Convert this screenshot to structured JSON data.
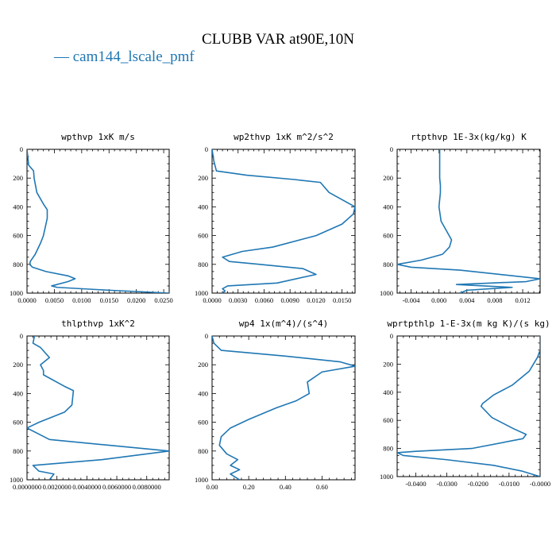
{
  "title": "CLUBB VAR at90E,10N",
  "legend": {
    "label": "cam144_lscale_pmf",
    "color": "#1f77b4"
  },
  "colors": {
    "line": "#1f77b4",
    "axis": "#000000",
    "text": "#000000"
  },
  "chart_data": [
    {
      "type": "line",
      "title": "wpthvp   1xK m/s",
      "xlim": [
        0,
        0.026
      ],
      "ylim": [
        1000,
        0
      ],
      "xticks": [
        0,
        0.005,
        0.01,
        0.015,
        0.02,
        0.025
      ],
      "xtick_labels": [
        "0.0000",
        "0.0050",
        "0.0100",
        "0.0150",
        "0.0200",
        "0.0250"
      ],
      "yticks": [
        0,
        200,
        400,
        600,
        800,
        1000
      ],
      "ytick_labels": [
        "0",
        "200",
        "400",
        "600",
        "800",
        "1000"
      ],
      "series": [
        {
          "name": "cam144_lscale_pmf",
          "x": [
            0.0,
            0.0003,
            0.0012,
            0.0013,
            0.0018,
            0.003,
            0.0037,
            0.0037,
            0.003,
            0.0025,
            0.0015,
            0.0006,
            0.0005,
            0.001,
            0.0035,
            0.0075,
            0.0088,
            0.0075,
            0.0045,
            0.0055,
            0.015,
            0.026
          ],
          "y": [
            0,
            110,
            150,
            200,
            300,
            380,
            420,
            480,
            600,
            650,
            730,
            780,
            800,
            820,
            850,
            880,
            900,
            920,
            950,
            960,
            980,
            1000
          ]
        }
      ]
    },
    {
      "type": "line",
      "title": "wp2thvp   1xK m^2/s^2",
      "xlim": [
        0,
        0.0165
      ],
      "ylim": [
        1000,
        0
      ],
      "xticks": [
        0,
        0.003,
        0.006,
        0.009,
        0.012,
        0.015
      ],
      "xtick_labels": [
        "0.0000",
        "0.0030",
        "0.0060",
        "0.0090",
        "0.0120",
        "0.0150"
      ],
      "yticks": [
        0,
        200,
        400,
        600,
        800,
        1000
      ],
      "ytick_labels": [
        "0",
        "200",
        "400",
        "600",
        "800",
        "1000"
      ],
      "series": [
        {
          "name": "cam144_lscale_pmf",
          "x": [
            0.0,
            0.0002,
            0.0005,
            0.004,
            0.0095,
            0.0125,
            0.0135,
            0.0165,
            0.0163,
            0.015,
            0.012,
            0.007,
            0.0035,
            0.0012,
            0.002,
            0.0055,
            0.0105,
            0.012,
            0.0075,
            0.0018,
            0.0012,
            0.0015,
            0.0012
          ],
          "y": [
            0,
            80,
            150,
            180,
            210,
            230,
            300,
            400,
            450,
            520,
            600,
            680,
            710,
            750,
            780,
            800,
            830,
            870,
            930,
            950,
            970,
            985,
            1000
          ]
        }
      ]
    },
    {
      "type": "line",
      "title": "rtpthvp   1E-3x(kg/kg) K",
      "xlim": [
        -0.006,
        0.0145
      ],
      "ylim": [
        1000,
        0
      ],
      "xticks": [
        -0.004,
        0.0,
        0.004,
        0.008,
        0.012
      ],
      "xtick_labels": [
        "-0.004",
        "0.000",
        "0.004",
        "0.008",
        "0.012"
      ],
      "yticks": [
        0,
        200,
        400,
        600,
        800,
        1000
      ],
      "ytick_labels": [
        "0",
        "200",
        "400",
        "600",
        "800",
        "1000"
      ],
      "series": [
        {
          "name": "cam144_lscale_pmf",
          "x": [
            0.0001,
            0.0001,
            0.0002,
            0.0002,
            0.0,
            0.0003,
            0.001,
            0.0018,
            0.0015,
            0.0005,
            -0.0025,
            -0.006,
            -0.004,
            0.003,
            0.0145,
            0.0125,
            0.0025,
            0.0105,
            0.004,
            0.003
          ],
          "y": [
            0,
            200,
            250,
            300,
            400,
            500,
            560,
            630,
            680,
            730,
            770,
            800,
            820,
            840,
            900,
            920,
            940,
            960,
            980,
            1000
          ]
        }
      ]
    },
    {
      "type": "line",
      "title": "thlpthvp   1xK^2",
      "xlim": [
        0,
        0.0095
      ],
      "ylim": [
        1000,
        0
      ],
      "xticks": [
        0,
        0.002,
        0.004,
        0.006,
        0.008
      ],
      "xtick_labels": [
        "0.0000000",
        "0.0020000",
        "0.0040000",
        "0.0060000",
        "0.0080000"
      ],
      "yticks": [
        0,
        200,
        400,
        600,
        800,
        1000
      ],
      "ytick_labels": [
        "0",
        "200",
        "400",
        "600",
        "800",
        "1000"
      ],
      "series": [
        {
          "name": "cam144_lscale_pmf",
          "x": [
            0.0005,
            0.0004,
            0.0009,
            0.0015,
            0.0009,
            0.0011,
            0.0011,
            0.0025,
            0.0031,
            0.003,
            0.0025,
            0.0008,
            0.0,
            0.0015,
            0.0055,
            0.0095,
            0.005,
            0.0004,
            0.0008,
            0.0018,
            0.0015
          ],
          "y": [
            0,
            50,
            80,
            150,
            200,
            240,
            270,
            350,
            380,
            480,
            530,
            600,
            640,
            720,
            760,
            800,
            860,
            900,
            940,
            960,
            1000
          ]
        }
      ]
    },
    {
      "type": "line",
      "title": "wp4   1x(m^4)/(s^4)",
      "xlim": [
        0,
        0.78
      ],
      "ylim": [
        1000,
        0
      ],
      "xticks": [
        0,
        0.2,
        0.4,
        0.6
      ],
      "xtick_labels": [
        "0.00",
        "0.20",
        "0.40",
        "0.60"
      ],
      "yticks": [
        0,
        200,
        400,
        600,
        800,
        1000
      ],
      "ytick_labels": [
        "0",
        "200",
        "400",
        "600",
        "800",
        "1000"
      ],
      "series": [
        {
          "name": "cam144_lscale_pmf",
          "x": [
            0.0,
            0.01,
            0.05,
            0.4,
            0.7,
            0.78,
            0.6,
            0.52,
            0.53,
            0.46,
            0.35,
            0.2,
            0.1,
            0.05,
            0.04,
            0.08,
            0.14,
            0.1,
            0.15,
            0.1,
            0.15
          ],
          "y": [
            0,
            50,
            100,
            140,
            180,
            210,
            250,
            320,
            400,
            450,
            500,
            580,
            640,
            700,
            760,
            820,
            860,
            900,
            930,
            960,
            1000
          ]
        }
      ]
    },
    {
      "type": "line",
      "title": "wprtpthlp   1-E-3x(m kg K)/(s kg)",
      "xlim": [
        -0.046,
        0.0
      ],
      "ylim": [
        1000,
        0
      ],
      "xticks": [
        -0.04,
        -0.03,
        -0.02,
        -0.01,
        0.0
      ],
      "xtick_labels": [
        "-0.0400",
        "-0.0300",
        "-0.0200",
        "-0.0100",
        "-0.0000"
      ],
      "yticks": [
        0,
        200,
        400,
        600,
        800,
        1000
      ],
      "ytick_labels": [
        "0",
        "200",
        "400",
        "600",
        "800",
        "1000"
      ],
      "series": [
        {
          "name": "cam144_lscale_pmf",
          "x": [
            0.0,
            0.0,
            -0.0008,
            -0.0035,
            -0.009,
            -0.015,
            -0.0185,
            -0.019,
            -0.0155,
            -0.0085,
            -0.0045,
            -0.0055,
            -0.022,
            -0.04,
            -0.046,
            -0.044,
            -0.03,
            -0.015,
            -0.006,
            -0.0015,
            0.0
          ],
          "y": [
            0,
            100,
            150,
            250,
            350,
            420,
            480,
            500,
            580,
            660,
            700,
            730,
            800,
            820,
            830,
            850,
            880,
            920,
            960,
            990,
            1000
          ]
        }
      ]
    }
  ]
}
